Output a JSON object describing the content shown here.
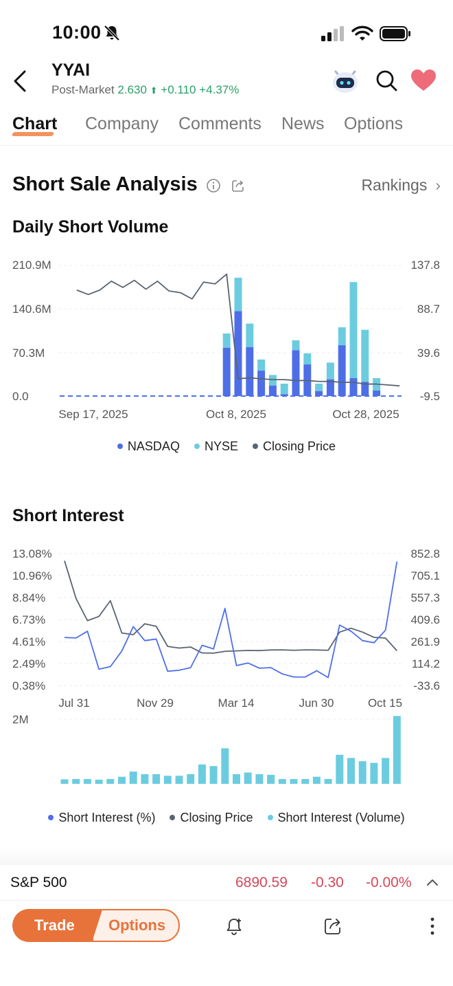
{
  "status": {
    "time": "10:00"
  },
  "header": {
    "ticker": "YYAI",
    "post_label": "Post-Market",
    "price": "2.630",
    "arrow": "⬆",
    "change": "+0.110",
    "change_pct": "+4.37%"
  },
  "tabs": [
    {
      "label": "Chart"
    },
    {
      "label": "Company"
    },
    {
      "label": "Comments"
    },
    {
      "label": "News"
    },
    {
      "label": "Options"
    }
  ],
  "section": {
    "title": "Short Sale Analysis",
    "rankings": "Rankings",
    "rankings_chevron": "›"
  },
  "chart1": {
    "title": "Daily Short Volume",
    "left_ticks": [
      "210.9M",
      "140.6M",
      "70.3M",
      "0.0"
    ],
    "right_ticks": [
      "137.8",
      "88.7",
      "39.6",
      "-9.5"
    ],
    "x_labels": [
      "Sep 17, 2025",
      "Oct 8, 2025",
      "Oct 28, 2025"
    ],
    "legend": [
      "NASDAQ",
      "NYSE",
      "Closing Price"
    ]
  },
  "chart2": {
    "title": "Short Interest",
    "left_ticks": [
      "13.08%",
      "10.96%",
      "8.84%",
      "6.73%",
      "4.61%",
      "2.49%",
      "0.38%"
    ],
    "right_ticks": [
      "852.8",
      "705.1",
      "557.3",
      "409.6",
      "261.9",
      "114.2",
      "-33.6"
    ],
    "x_labels": [
      "Jul 31",
      "Nov 29",
      "Mar 14",
      "Jun 30",
      "Oct 15"
    ],
    "volume_tick": "2M",
    "legend": [
      "Short Interest (%)",
      "Closing Price",
      "Short Interest (Volume)"
    ]
  },
  "colors": {
    "nasdaq": "#4e6ee8",
    "nyse": "#6cccdf",
    "price": "#5a6370",
    "accent": "#e8733a",
    "up": "#2aa06a",
    "down": "#d4475a"
  },
  "chart_data": [
    {
      "type": "bar",
      "title": "Daily Short Volume",
      "xlabel": "",
      "ylabel": "",
      "ylim": [
        0,
        210.9
      ],
      "y2lim": [
        -9.5,
        137.8
      ],
      "categories": [
        "Sep 17, 2025",
        "",
        "",
        "",
        "",
        "",
        "",
        "",
        "",
        "",
        "",
        "",
        "",
        "",
        "Oct 8, 2025",
        "",
        "",
        "",
        "",
        "",
        "",
        "",
        "",
        "",
        "",
        "",
        "",
        "",
        "Oct 28, 2025",
        ""
      ],
      "series": [
        {
          "name": "NASDAQ",
          "kind": "bar",
          "unit": "M",
          "values": [
            0,
            0,
            0,
            0,
            0,
            0,
            0,
            0,
            0,
            0,
            0,
            0,
            0,
            0,
            78,
            137,
            79,
            41,
            17,
            3,
            74,
            51,
            8,
            27,
            82,
            29,
            23,
            9,
            0,
            0
          ]
        },
        {
          "name": "NYSE",
          "kind": "bar",
          "unit": "M",
          "values": [
            0,
            0,
            0,
            0,
            0,
            0,
            0,
            0,
            0,
            0,
            0,
            0,
            0,
            0,
            23,
            54,
            38,
            18,
            17,
            17,
            16,
            18,
            12,
            27,
            29,
            155,
            84,
            20,
            0,
            0
          ]
        },
        {
          "name": "Closing Price",
          "kind": "line",
          "values": [
            null,
            110,
            105,
            110,
            120,
            113,
            121,
            111,
            120,
            109,
            107,
            100,
            119,
            117,
            128,
            10,
            11,
            10,
            9,
            9,
            8,
            8,
            7,
            7,
            6,
            6,
            4,
            4,
            3,
            2
          ]
        }
      ]
    },
    {
      "type": "line",
      "title": "Short Interest",
      "xlabel": "",
      "ylabel": "",
      "ylim": [
        0.38,
        13.08
      ],
      "y2lim": [
        -33.6,
        852.8
      ],
      "categories": [
        "Jul 31",
        "",
        "",
        "",
        "",
        "Nov 29",
        "",
        "",
        "",
        "",
        "",
        "",
        "",
        "Mar 14",
        "",
        "",
        "",
        "",
        "",
        "",
        "",
        "",
        "Jun 30",
        "",
        "",
        "",
        "",
        "",
        "Oct 15",
        ""
      ],
      "series": [
        {
          "name": "Short Interest (%)",
          "values": [
            5.0,
            4.95,
            5.6,
            1.95,
            2.2,
            3.7,
            6.05,
            4.7,
            4.85,
            1.75,
            1.85,
            2.1,
            4.25,
            3.9,
            7.8,
            2.3,
            2.55,
            2.05,
            2.1,
            1.5,
            1.2,
            1.2,
            1.8,
            1.15,
            6.2,
            5.6,
            4.7,
            4.5,
            5.7,
            12.3
          ]
        },
        {
          "name": "Closing Price",
          "values": [
            804,
            552,
            402,
            430,
            536,
            319,
            308,
            381,
            364,
            229,
            218,
            225,
            185,
            184,
            196,
            199,
            202,
            201,
            205,
            206,
            203,
            206,
            205,
            203,
            325,
            351,
            325,
            290,
            285,
            200
          ]
        },
        {
          "name": "Short Interest (Volume)",
          "values": [
            0.14,
            0.15,
            0.15,
            0.13,
            0.15,
            0.22,
            0.38,
            0.3,
            0.3,
            0.25,
            0.25,
            0.3,
            0.6,
            0.55,
            1.1,
            0.3,
            0.35,
            0.3,
            0.28,
            0.15,
            0.15,
            0.15,
            0.22,
            0.15,
            0.9,
            0.8,
            0.7,
            0.65,
            0.8,
            2.1
          ]
        }
      ]
    }
  ],
  "index_bar": {
    "name": "S&P 500",
    "price": "6890.59",
    "change": "-0.30",
    "change_pct": "-0.00%"
  },
  "actions": {
    "trade": "Trade",
    "options": "Options"
  }
}
